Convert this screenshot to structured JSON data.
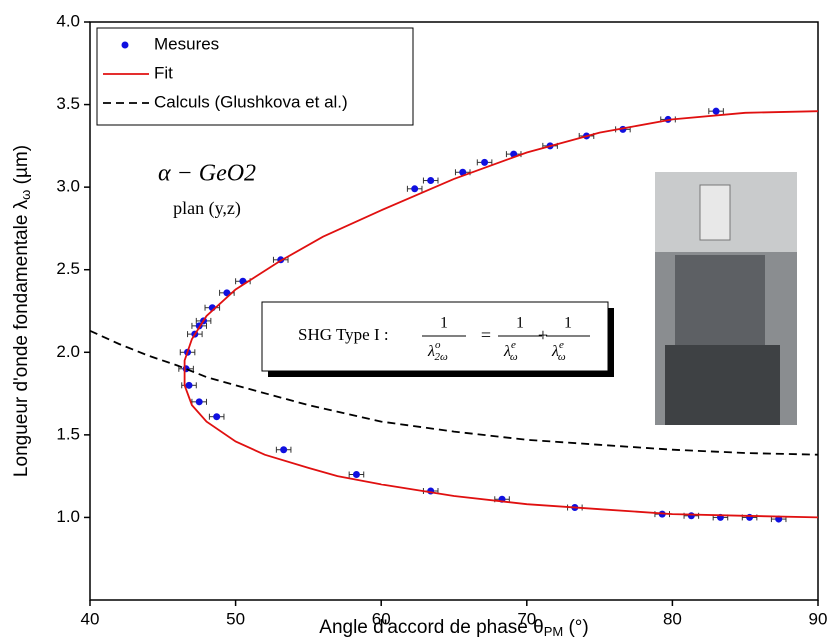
{
  "chart_data": {
    "type": "scatter",
    "xlabel": {
      "text": "Angle d'accord de phase θ",
      "sub": "PM",
      "unit": " (°)"
    },
    "ylabel": {
      "text": "Longueur d'onde fondamentale λ",
      "sub": "ω",
      "unit": " (µm)"
    },
    "xlim": [
      40,
      90
    ],
    "ylim": [
      0.5,
      4.0
    ],
    "xticks": [
      40,
      50,
      60,
      70,
      80,
      90
    ],
    "yticks": [
      {
        "value": 1,
        "label": "1.0"
      },
      1.5,
      {
        "value": 2,
        "label": "2.0"
      },
      2.5,
      {
        "value": 3,
        "label": "3.0"
      },
      3.5,
      {
        "value": 4,
        "label": "4.0"
      }
    ],
    "legend": "upper left",
    "series": [
      {
        "name": "Mesures",
        "color": "#1010e0",
        "style": "markers",
        "xerr": 0.5,
        "x": [
          83.0,
          79.7,
          76.6,
          74.1,
          71.6,
          69.1,
          67.1,
          65.6,
          63.4,
          62.3,
          53.1,
          50.5,
          49.4,
          48.4,
          47.8,
          47.5,
          47.2,
          46.7,
          46.6,
          46.8,
          47.5,
          48.7,
          53.3,
          58.3,
          63.4,
          68.3,
          73.3,
          79.3,
          81.3,
          83.3,
          85.3,
          87.3
        ],
        "values": [
          3.46,
          3.41,
          3.35,
          3.31,
          3.25,
          3.2,
          3.15,
          3.09,
          3.04,
          2.99,
          2.56,
          2.43,
          2.36,
          2.27,
          2.19,
          2.16,
          2.11,
          2.0,
          1.9,
          1.8,
          1.7,
          1.61,
          1.41,
          1.26,
          1.16,
          1.11,
          1.06,
          1.02,
          1.01,
          1.0,
          1.0,
          0.99
        ]
      },
      {
        "name": "Fit",
        "color": "#e01010",
        "style": "solid",
        "x": [
          90,
          85,
          80,
          75,
          70,
          65,
          60,
          57,
          55,
          52,
          50,
          48,
          47,
          46.5,
          46.5,
          47,
          48,
          50,
          53,
          56,
          60,
          65,
          70,
          75,
          80,
          85,
          90
        ],
        "values": [
          1.0,
          1.01,
          1.02,
          1.05,
          1.08,
          1.13,
          1.2,
          1.25,
          1.3,
          1.38,
          1.46,
          1.58,
          1.68,
          1.8,
          1.95,
          2.08,
          2.22,
          2.38,
          2.55,
          2.7,
          2.86,
          3.05,
          3.21,
          3.33,
          3.41,
          3.45,
          3.46
        ]
      },
      {
        "name": "Calculs (Glushkova et al.)",
        "color": "#000000",
        "style": "dashed",
        "x": [
          40,
          42,
          44,
          46,
          48,
          50,
          55,
          60,
          65,
          70,
          75,
          80,
          85,
          90
        ],
        "values": [
          2.13,
          2.05,
          1.98,
          1.92,
          1.85,
          1.8,
          1.68,
          1.58,
          1.52,
          1.47,
          1.44,
          1.41,
          1.39,
          1.38
        ]
      }
    ],
    "annotations": {
      "material": "α − GeO2",
      "plane": "plan (y,z)",
      "formula": {
        "label": "SHG Type I :",
        "ops": [
          "=",
          "+"
        ],
        "terms": [
          {
            "num": "1",
            "sym": "λ",
            "sup": "o",
            "sub": "2ω"
          },
          {
            "num": "1",
            "sym": "λ",
            "sup": "e",
            "sub": "ω"
          },
          {
            "num": "1",
            "sym": "λ",
            "sup": "e",
            "sub": "ω"
          }
        ]
      }
    }
  }
}
